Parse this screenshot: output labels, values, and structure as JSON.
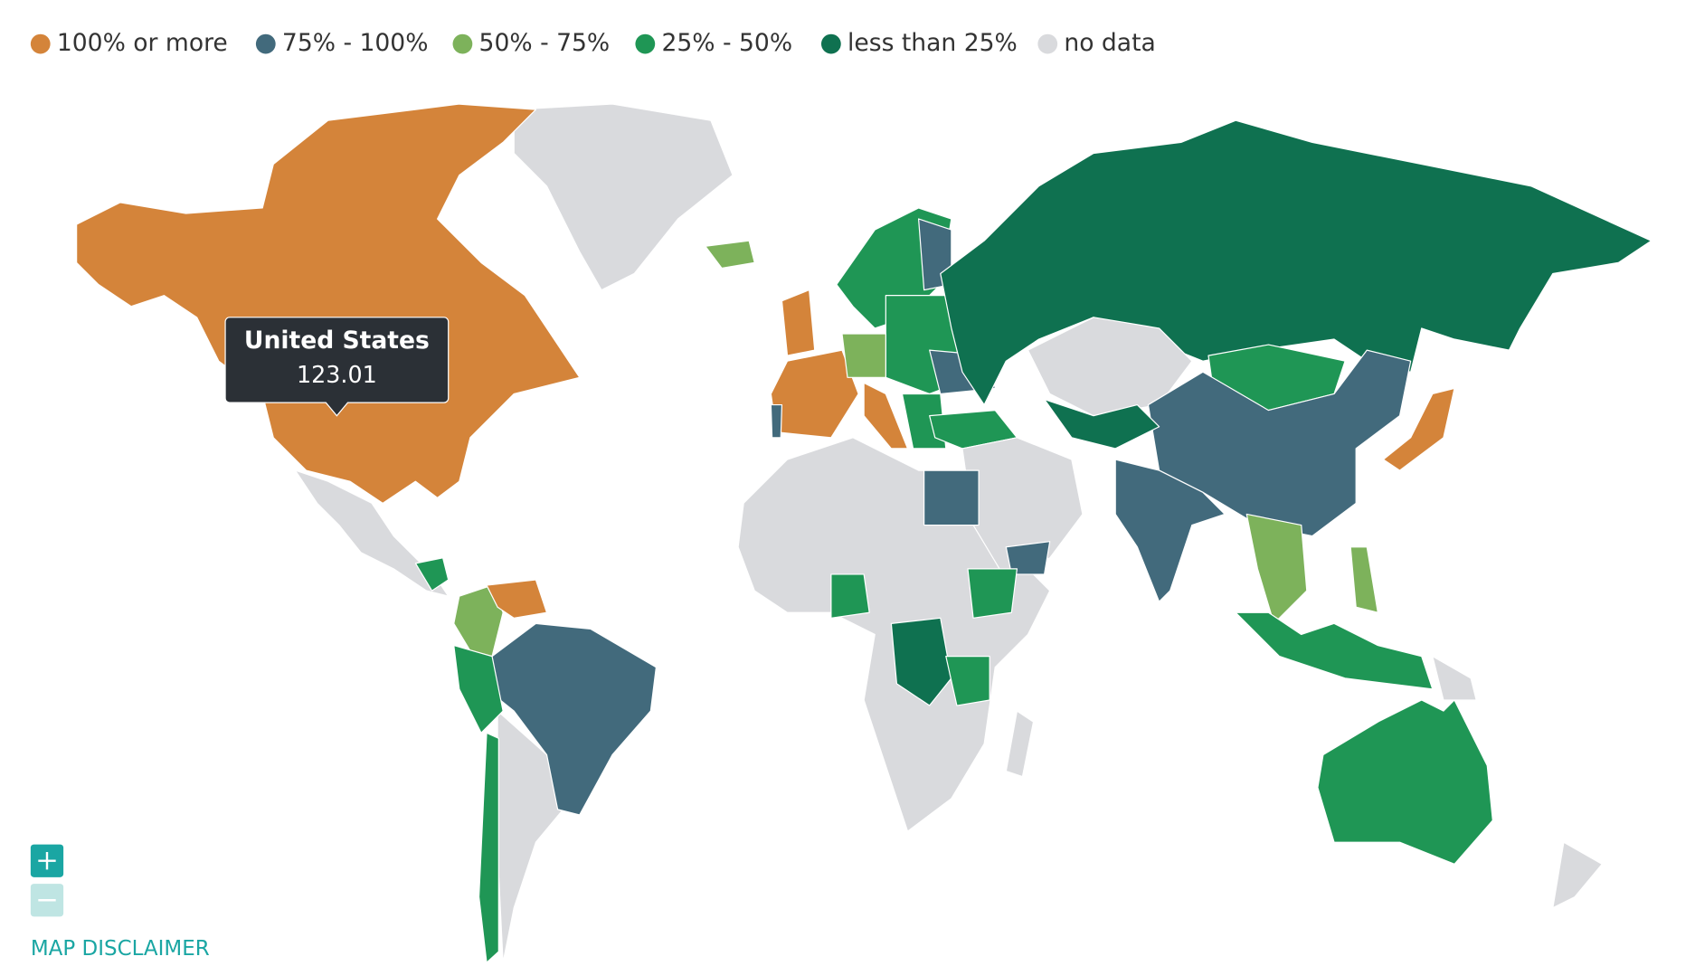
{
  "legend": [
    {
      "label": "100% or more",
      "color": "#d4843a"
    },
    {
      "label": "75% - 100%",
      "color": "#426a7c"
    },
    {
      "label": "50% - 75%",
      "color": "#7db25b"
    },
    {
      "label": "25% - 50%",
      "color": "#1f9655"
    },
    {
      "label": "less than 25%",
      "color": "#0f7150"
    },
    {
      "label": "no data",
      "color": "#d9dadd"
    }
  ],
  "tooltip": {
    "title": "United States",
    "value": 123.01
  },
  "disclaimer": "MAP DISCLAIMER"
}
